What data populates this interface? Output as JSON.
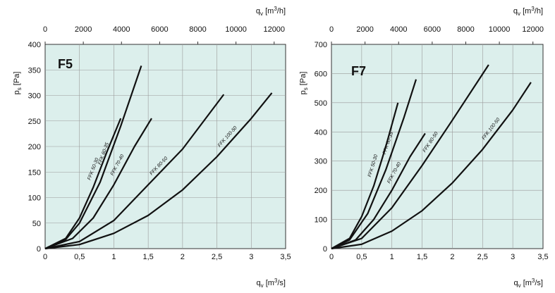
{
  "chart_data": [
    {
      "type": "line",
      "title": "F5",
      "xlabel": "qv [m3/s]",
      "x2label": "qv [m3/h]",
      "ylabel": "ps [Pa]",
      "xlim": [
        0,
        3.5
      ],
      "ylim": [
        0,
        400
      ],
      "x_ticks": [
        "0",
        "0,5",
        "1",
        "1,5",
        "2",
        "2,5",
        "3",
        "3,5"
      ],
      "x2_ticks": [
        "0",
        "2000",
        "4000",
        "6000",
        "8000",
        "10000",
        "12000"
      ],
      "y_ticks": [
        "0",
        "50",
        "100",
        "150",
        "200",
        "250",
        "300",
        "350",
        "400"
      ],
      "grid": true,
      "series": [
        {
          "name": "FFK 50-30",
          "x": [
            0,
            0.3,
            0.5,
            0.7,
            0.9,
            1.1
          ],
          "y": [
            0,
            20,
            60,
            120,
            190,
            255
          ]
        },
        {
          "name": "FFK 60-35",
          "x": [
            0,
            0.3,
            0.5,
            0.8,
            1.1,
            1.4
          ],
          "y": [
            0,
            18,
            50,
            130,
            240,
            358
          ]
        },
        {
          "name": "FFK 70-40",
          "x": [
            0,
            0.4,
            0.7,
            1.0,
            1.3,
            1.55
          ],
          "y": [
            0,
            20,
            60,
            125,
            200,
            255
          ]
        },
        {
          "name": "FFK 80-50",
          "x": [
            0,
            0.5,
            1.0,
            1.5,
            2.0,
            2.6
          ],
          "y": [
            0,
            14,
            55,
            125,
            195,
            302
          ]
        },
        {
          "name": "FFK 100-50",
          "x": [
            0,
            0.5,
            1.0,
            1.5,
            2.0,
            2.5,
            3.0,
            3.3
          ],
          "y": [
            0,
            8,
            30,
            65,
            115,
            180,
            255,
            305
          ]
        }
      ]
    },
    {
      "type": "line",
      "title": "F7",
      "xlabel": "qv [m3/s]",
      "x2label": "qv [m3/h]",
      "ylabel": "ps [Pa]",
      "xlim": [
        0,
        3.5
      ],
      "ylim": [
        0,
        700
      ],
      "x_ticks": [
        "0",
        "0,5",
        "1",
        "1,5",
        "2",
        "2,5",
        "3",
        "3,5"
      ],
      "x2_ticks": [
        "0",
        "2000",
        "4000",
        "6000",
        "8000",
        "10000",
        "12000"
      ],
      "y_ticks": [
        "0",
        "100",
        "200",
        "300",
        "400",
        "500",
        "600",
        "700"
      ],
      "grid": true,
      "series": [
        {
          "name": "FFK 50-30",
          "x": [
            0,
            0.3,
            0.5,
            0.7,
            0.9,
            1.1
          ],
          "y": [
            0,
            35,
            110,
            215,
            350,
            500
          ]
        },
        {
          "name": "FFK 60-35",
          "x": [
            0,
            0.3,
            0.6,
            0.9,
            1.2,
            1.4
          ],
          "y": [
            0,
            30,
            120,
            270,
            450,
            580
          ]
        },
        {
          "name": "FFK 70-40",
          "x": [
            0,
            0.4,
            0.7,
            1.0,
            1.3,
            1.55
          ],
          "y": [
            0,
            30,
            100,
            200,
            315,
            395
          ]
        },
        {
          "name": "FFK 80-50",
          "x": [
            0,
            0.5,
            1.0,
            1.5,
            2.0,
            2.6
          ],
          "y": [
            0,
            35,
            140,
            285,
            440,
            630
          ]
        },
        {
          "name": "FFK 100-50",
          "x": [
            0,
            0.5,
            1.0,
            1.5,
            2.0,
            2.5,
            3.0,
            3.3
          ],
          "y": [
            0,
            15,
            60,
            130,
            225,
            340,
            475,
            570
          ]
        }
      ]
    }
  ]
}
